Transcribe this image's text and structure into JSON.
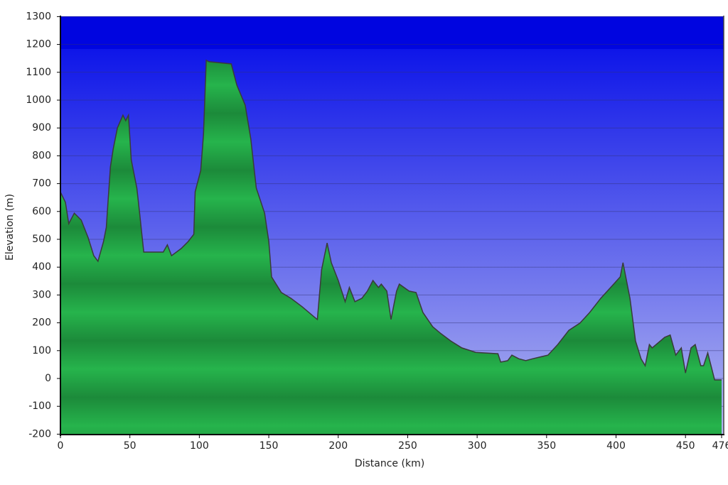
{
  "chart_data": {
    "type": "area",
    "x_label": "Distance   (km)",
    "y_label": "Elevation (m)",
    "x": [
      0,
      3.6,
      6,
      10,
      15,
      20,
      24,
      27,
      31,
      33,
      36,
      38,
      41,
      45,
      47,
      49,
      51,
      55,
      57,
      60,
      67,
      74,
      77,
      80,
      87,
      92,
      96,
      97,
      101,
      103,
      105,
      107,
      123,
      127,
      133,
      137,
      141,
      147,
      150,
      152,
      159,
      166,
      174,
      182,
      185,
      188,
      192,
      195,
      200,
      205,
      208,
      212,
      217,
      221,
      225,
      229,
      231,
      235,
      238,
      242,
      244,
      251,
      256,
      261,
      268,
      274,
      281,
      289,
      299,
      315,
      317,
      322,
      325,
      330,
      335,
      340,
      351,
      358,
      366,
      374,
      381,
      389,
      397,
      403,
      405,
      407,
      410,
      414,
      418,
      421,
      424,
      426,
      435,
      439,
      443,
      447,
      450,
      454,
      457,
      461,
      463,
      466,
      471,
      476
    ],
    "values": [
      670,
      633,
      556,
      594,
      569,
      505,
      441,
      421,
      492,
      543,
      760,
      824,
      900,
      946,
      926,
      946,
      786,
      684,
      594,
      454,
      454,
      454,
      480,
      441,
      467,
      492,
      518,
      671,
      747,
      875,
      1143,
      1138,
      1130,
      1054,
      982,
      862,
      684,
      594,
      492,
      365,
      309,
      288,
      258,
      224,
      212,
      390,
      487,
      416,
      352,
      276,
      327,
      276,
      288,
      314,
      352,
      327,
      339,
      314,
      212,
      314,
      339,
      314,
      309,
      237,
      186,
      161,
      135,
      110,
      94,
      89,
      59,
      64,
      84,
      71,
      64,
      71,
      84,
      122,
      173,
      199,
      237,
      288,
      332,
      365,
      416,
      365,
      288,
      135,
      71,
      46,
      122,
      110,
      148,
      156,
      84,
      110,
      20,
      110,
      122,
      46,
      46,
      92,
      -5,
      -5
    ],
    "color": "#22a046",
    "xlim": [
      0,
      476
    ],
    "xticks": [
      0,
      50,
      100,
      150,
      200,
      250,
      300,
      350,
      400,
      450,
      476
    ],
    "ylim": [
      -200,
      1300
    ],
    "yticks": [
      -200,
      -100,
      0,
      100,
      200,
      300,
      400,
      500,
      600,
      700,
      800,
      900,
      1000,
      1100,
      1200,
      1300
    ],
    "grid": true
  }
}
